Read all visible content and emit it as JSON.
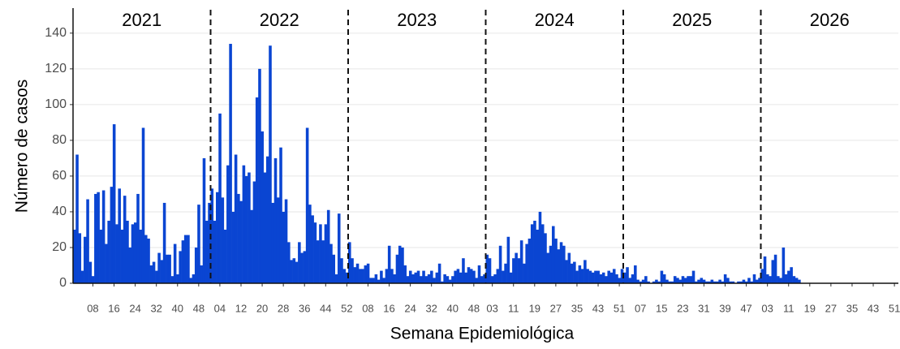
{
  "chart_data": {
    "type": "bar",
    "x_label": "Semana Epidemiológica",
    "y_label": "Número de casos",
    "year_labels": [
      "2021",
      "2022",
      "2023",
      "2024",
      "2025",
      "2026"
    ],
    "color": "#0a45d2",
    "ylim": [
      0,
      154
    ],
    "yticks": [
      0,
      20,
      40,
      60,
      80,
      100,
      120,
      140
    ],
    "grid": true,
    "categories": [
      null,
      null,
      null,
      null,
      null,
      null,
      null,
      "08",
      null,
      null,
      null,
      null,
      null,
      null,
      null,
      "16",
      null,
      null,
      null,
      null,
      null,
      null,
      null,
      "24",
      null,
      null,
      null,
      null,
      null,
      null,
      null,
      "32",
      null,
      null,
      null,
      null,
      null,
      null,
      null,
      "40",
      null,
      null,
      null,
      null,
      null,
      null,
      null,
      "48",
      null,
      null,
      null,
      null,
      null,
      null,
      null,
      "04",
      null,
      null,
      null,
      null,
      null,
      null,
      null,
      "12",
      null,
      null,
      null,
      null,
      null,
      null,
      null,
      "20",
      null,
      null,
      null,
      null,
      null,
      null,
      null,
      "28",
      null,
      null,
      null,
      null,
      null,
      null,
      null,
      "36",
      null,
      null,
      null,
      null,
      null,
      null,
      null,
      "44",
      null,
      null,
      null,
      null,
      null,
      null,
      null,
      "52",
      null,
      null,
      null,
      null,
      null,
      null,
      null,
      "08",
      null,
      null,
      null,
      null,
      null,
      null,
      null,
      "16",
      null,
      null,
      null,
      null,
      null,
      null,
      null,
      "24",
      null,
      null,
      null,
      null,
      null,
      null,
      null,
      "32",
      null,
      null,
      null,
      null,
      null,
      null,
      null,
      "40",
      null,
      null,
      null,
      null,
      null,
      null,
      null,
      "48",
      null,
      null,
      null,
      null,
      null,
      null,
      "03",
      null,
      null,
      null,
      null,
      null,
      null,
      null,
      "11",
      null,
      null,
      null,
      null,
      null,
      null,
      null,
      "19",
      null,
      null,
      null,
      null,
      null,
      null,
      null,
      "27",
      null,
      null,
      null,
      null,
      null,
      null,
      null,
      "35",
      null,
      null,
      null,
      null,
      null,
      null,
      null,
      "43",
      null,
      null,
      null,
      null,
      null,
      null,
      null,
      "51",
      null,
      null,
      null,
      null,
      null,
      null,
      null,
      "07",
      null,
      null,
      null,
      null,
      null,
      null,
      null,
      "15",
      null,
      null,
      null,
      null,
      null,
      null,
      null,
      "23",
      null,
      null,
      null,
      null,
      null,
      null,
      null,
      "31",
      null,
      null,
      null,
      null,
      null,
      null,
      null,
      "39",
      null,
      null,
      null,
      null,
      null,
      null,
      null,
      "47",
      null,
      null,
      null,
      null,
      null,
      null,
      null,
      "03",
      null,
      null,
      null,
      null,
      null,
      null,
      null,
      "11",
      null,
      null,
      null,
      null,
      null,
      null,
      null,
      "19",
      null,
      null,
      null,
      null,
      null,
      null,
      null,
      "27",
      null,
      null,
      null,
      null,
      null,
      null,
      null,
      "35",
      null,
      null,
      null,
      null,
      null,
      null,
      null,
      "43",
      null,
      null,
      null,
      null,
      null,
      null,
      null,
      "51",
      null
    ],
    "values": [
      30,
      72,
      28,
      7,
      26,
      47,
      12,
      4,
      50,
      51,
      30,
      52,
      22,
      35,
      54,
      89,
      33,
      53,
      30,
      49,
      35,
      20,
      33,
      34,
      50,
      30,
      87,
      27,
      25,
      10,
      12,
      7,
      17,
      13,
      45,
      16,
      16,
      4,
      22,
      5,
      18,
      24,
      27,
      27,
      3,
      5,
      20,
      44,
      10,
      70,
      35,
      45,
      53,
      35,
      51,
      95,
      48,
      30,
      66,
      134,
      40,
      72,
      50,
      46,
      66,
      60,
      62,
      41,
      57,
      104,
      120,
      85,
      62,
      71,
      133,
      45,
      70,
      48,
      76,
      40,
      47,
      23,
      13,
      14,
      12,
      23,
      17,
      18,
      87,
      44,
      38,
      34,
      24,
      33,
      24,
      33,
      41,
      22,
      16,
      5,
      39,
      14,
      8,
      6,
      23,
      14,
      9,
      11,
      8,
      8,
      10,
      11,
      3,
      3,
      5,
      2,
      7,
      3,
      8,
      21,
      8,
      5,
      16,
      21,
      20,
      10,
      4,
      7,
      5,
      6,
      7,
      4,
      7,
      4,
      5,
      7,
      3,
      6,
      11,
      1,
      5,
      4,
      2,
      4,
      7,
      8,
      6,
      14,
      6,
      9,
      8,
      7,
      3,
      10,
      4,
      5,
      16,
      14,
      4,
      5,
      8,
      21,
      7,
      11,
      26,
      6,
      14,
      17,
      14,
      24,
      11,
      22,
      25,
      33,
      35,
      30,
      40,
      33,
      28,
      17,
      21,
      32,
      25,
      19,
      23,
      21,
      13,
      17,
      11,
      12,
      7,
      10,
      8,
      13,
      8,
      7,
      6,
      7,
      7,
      5,
      6,
      4,
      7,
      6,
      8,
      5,
      3,
      8,
      6,
      9,
      3,
      5,
      10,
      2,
      1,
      2,
      4,
      1,
      0,
      1,
      2,
      1,
      7,
      5,
      2,
      1,
      1,
      4,
      3,
      2,
      4,
      3,
      4,
      4,
      7,
      1,
      2,
      3,
      2,
      1,
      1,
      2,
      1,
      1,
      2,
      1,
      5,
      3,
      1,
      1,
      0,
      1,
      1,
      2,
      1,
      3,
      1,
      5,
      2,
      3,
      8,
      15,
      5,
      4,
      13,
      16,
      4,
      3,
      20,
      5,
      7,
      9,
      4,
      3,
      2,
      null,
      null,
      null,
      null,
      null,
      null,
      null,
      null,
      null,
      null,
      null,
      null,
      null,
      null,
      null,
      null,
      null,
      null,
      null,
      null,
      null,
      null,
      null,
      null,
      null,
      null,
      null,
      null,
      null,
      null,
      null,
      null,
      null,
      null,
      null,
      null,
      null
    ]
  }
}
